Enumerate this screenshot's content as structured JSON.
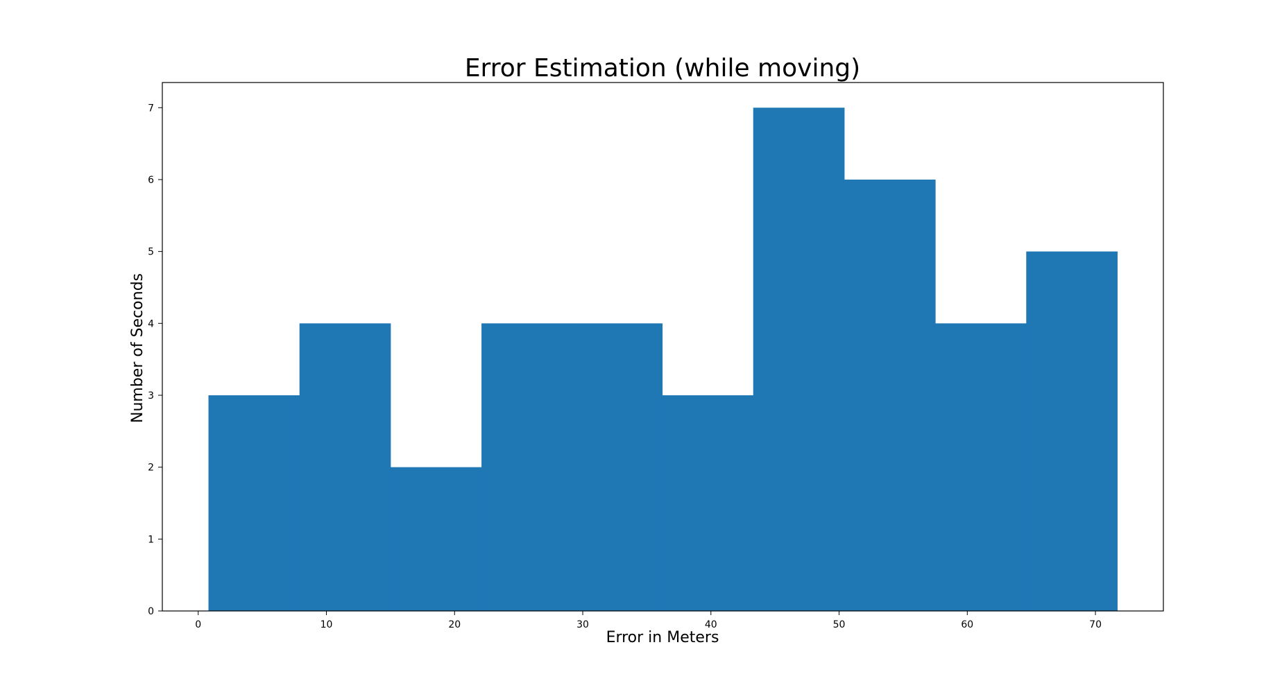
{
  "chart_data": {
    "type": "bar",
    "histogram": true,
    "title": "Error Estimation (while moving)",
    "xlabel": "Error in Meters",
    "ylabel": "Number of Seconds",
    "bin_edges": [
      0.8,
      7.9,
      15.0,
      22.1,
      29.2,
      36.2,
      43.3,
      50.4,
      57.5,
      64.6,
      71.7
    ],
    "values": [
      3,
      4,
      2,
      4,
      4,
      3,
      7,
      6,
      4,
      5
    ],
    "xlim": [
      -2.8,
      75.3
    ],
    "ylim": [
      0,
      7.35
    ],
    "xticks": [
      0,
      10,
      20,
      30,
      40,
      50,
      60,
      70
    ],
    "yticks": [
      0,
      1,
      2,
      3,
      4,
      5,
      6,
      7
    ],
    "bar_color": "#1f77b4",
    "grid": false,
    "legend": "none"
  }
}
